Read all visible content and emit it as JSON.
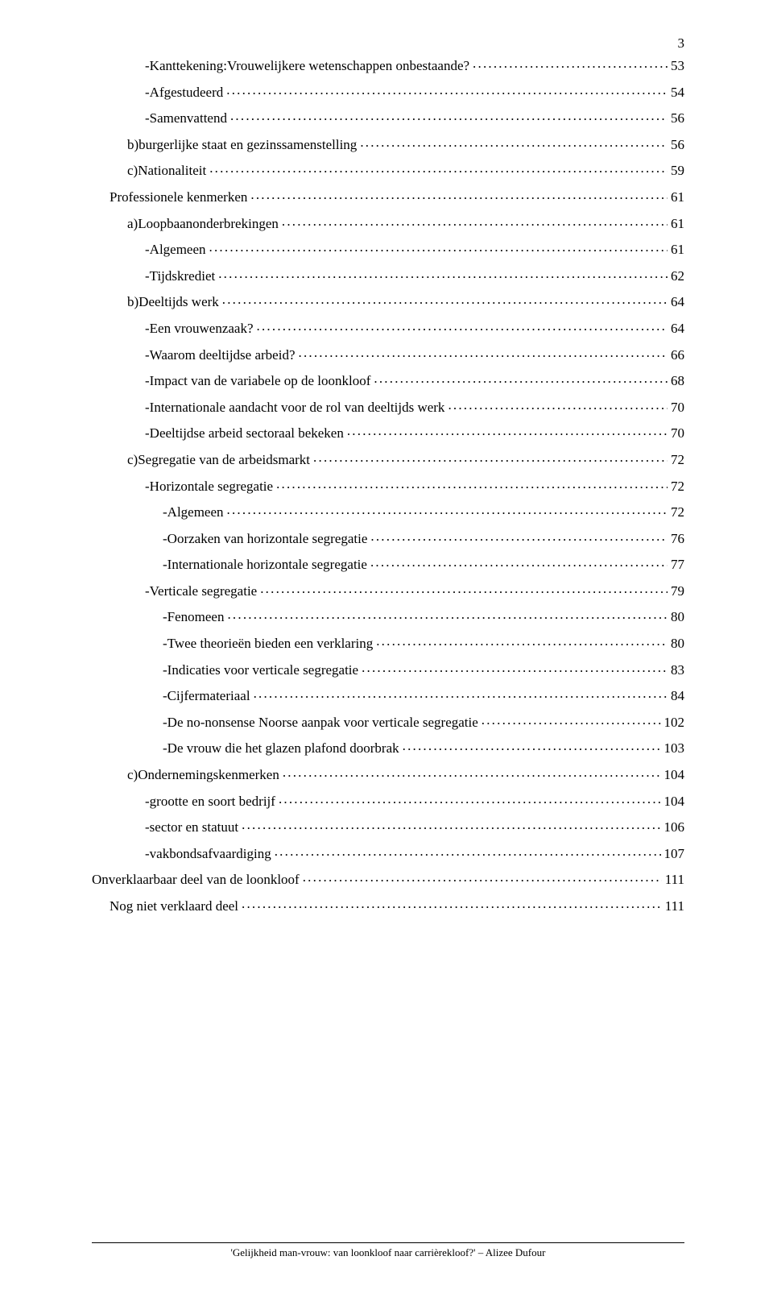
{
  "page_number": "3",
  "footer": "'Gelijkheid man-vrouw: van loonkloof naar carrièrekloof?' – Alizee Dufour",
  "entries": [
    {
      "label": "-Kanttekening:Vrouwelijkere wetenschappen onbestaande?",
      "page": "53",
      "indent": 3
    },
    {
      "label": "-Afgestudeerd",
      "page": "54",
      "indent": 3
    },
    {
      "label": "-Samenvattend",
      "page": "56",
      "indent": 3
    },
    {
      "label": "b)burgerlijke staat en gezinssamenstelling",
      "page": "56",
      "indent": 2
    },
    {
      "label": "c)Nationaliteit",
      "page": "59",
      "indent": 2
    },
    {
      "label": "Professionele kenmerken",
      "page": "61",
      "indent": 1
    },
    {
      "label": "a)Loopbaanonderbrekingen",
      "page": "61",
      "indent": 2
    },
    {
      "label": "-Algemeen",
      "page": "61",
      "indent": 3
    },
    {
      "label": "-Tijdskrediet",
      "page": "62",
      "indent": 3
    },
    {
      "label": "b)Deeltijds werk",
      "page": "64",
      "indent": 2
    },
    {
      "label": "-Een vrouwenzaak?",
      "page": "64",
      "indent": 3
    },
    {
      "label": "-Waarom deeltijdse arbeid?",
      "page": "66",
      "indent": 3
    },
    {
      "label": "-Impact van de variabele op de loonkloof",
      "page": "68",
      "indent": 3
    },
    {
      "label": "-Internationale aandacht voor de rol van deeltijds werk",
      "page": "70",
      "indent": 3
    },
    {
      "label": "-Deeltijdse arbeid sectoraal bekeken",
      "page": "70",
      "indent": 3
    },
    {
      "label": "c)Segregatie van de arbeidsmarkt",
      "page": "72",
      "indent": 2
    },
    {
      "label": "-Horizontale segregatie",
      "page": "72",
      "indent": 3
    },
    {
      "label": "-Algemeen",
      "page": "72",
      "indent": 4
    },
    {
      "label": "-Oorzaken van horizontale segregatie",
      "page": "76",
      "indent": 4
    },
    {
      "label": "-Internationale horizontale segregatie",
      "page": "77",
      "indent": 4
    },
    {
      "label": "-Verticale segregatie",
      "page": "79",
      "indent": 3
    },
    {
      "label": "-Fenomeen",
      "page": "80",
      "indent": 4
    },
    {
      "label": "-Twee theorieën bieden een verklaring",
      "page": "80",
      "indent": 4
    },
    {
      "label": "-Indicaties voor verticale segregatie",
      "page": "83",
      "indent": 4
    },
    {
      "label": "-Cijfermateriaal",
      "page": "84",
      "indent": 4
    },
    {
      "label": "-De no-nonsense Noorse aanpak voor verticale segregatie",
      "page": "102",
      "indent": 4
    },
    {
      "label": "-De vrouw die het glazen plafond doorbrak",
      "page": "103",
      "indent": 4
    },
    {
      "label": "c)Ondernemingskenmerken",
      "page": "104",
      "indent": 2
    },
    {
      "label": "-grootte en soort bedrijf",
      "page": "104",
      "indent": 3
    },
    {
      "label": "-sector en statuut",
      "page": "106",
      "indent": 3
    },
    {
      "label": "-vakbondsafvaardiging",
      "page": "107",
      "indent": 3
    },
    {
      "label": "Onverklaarbaar deel van de loonkloof",
      "page": "111",
      "indent": 0
    },
    {
      "label": "Nog niet verklaard deel",
      "page": "111",
      "indent": 1
    }
  ]
}
